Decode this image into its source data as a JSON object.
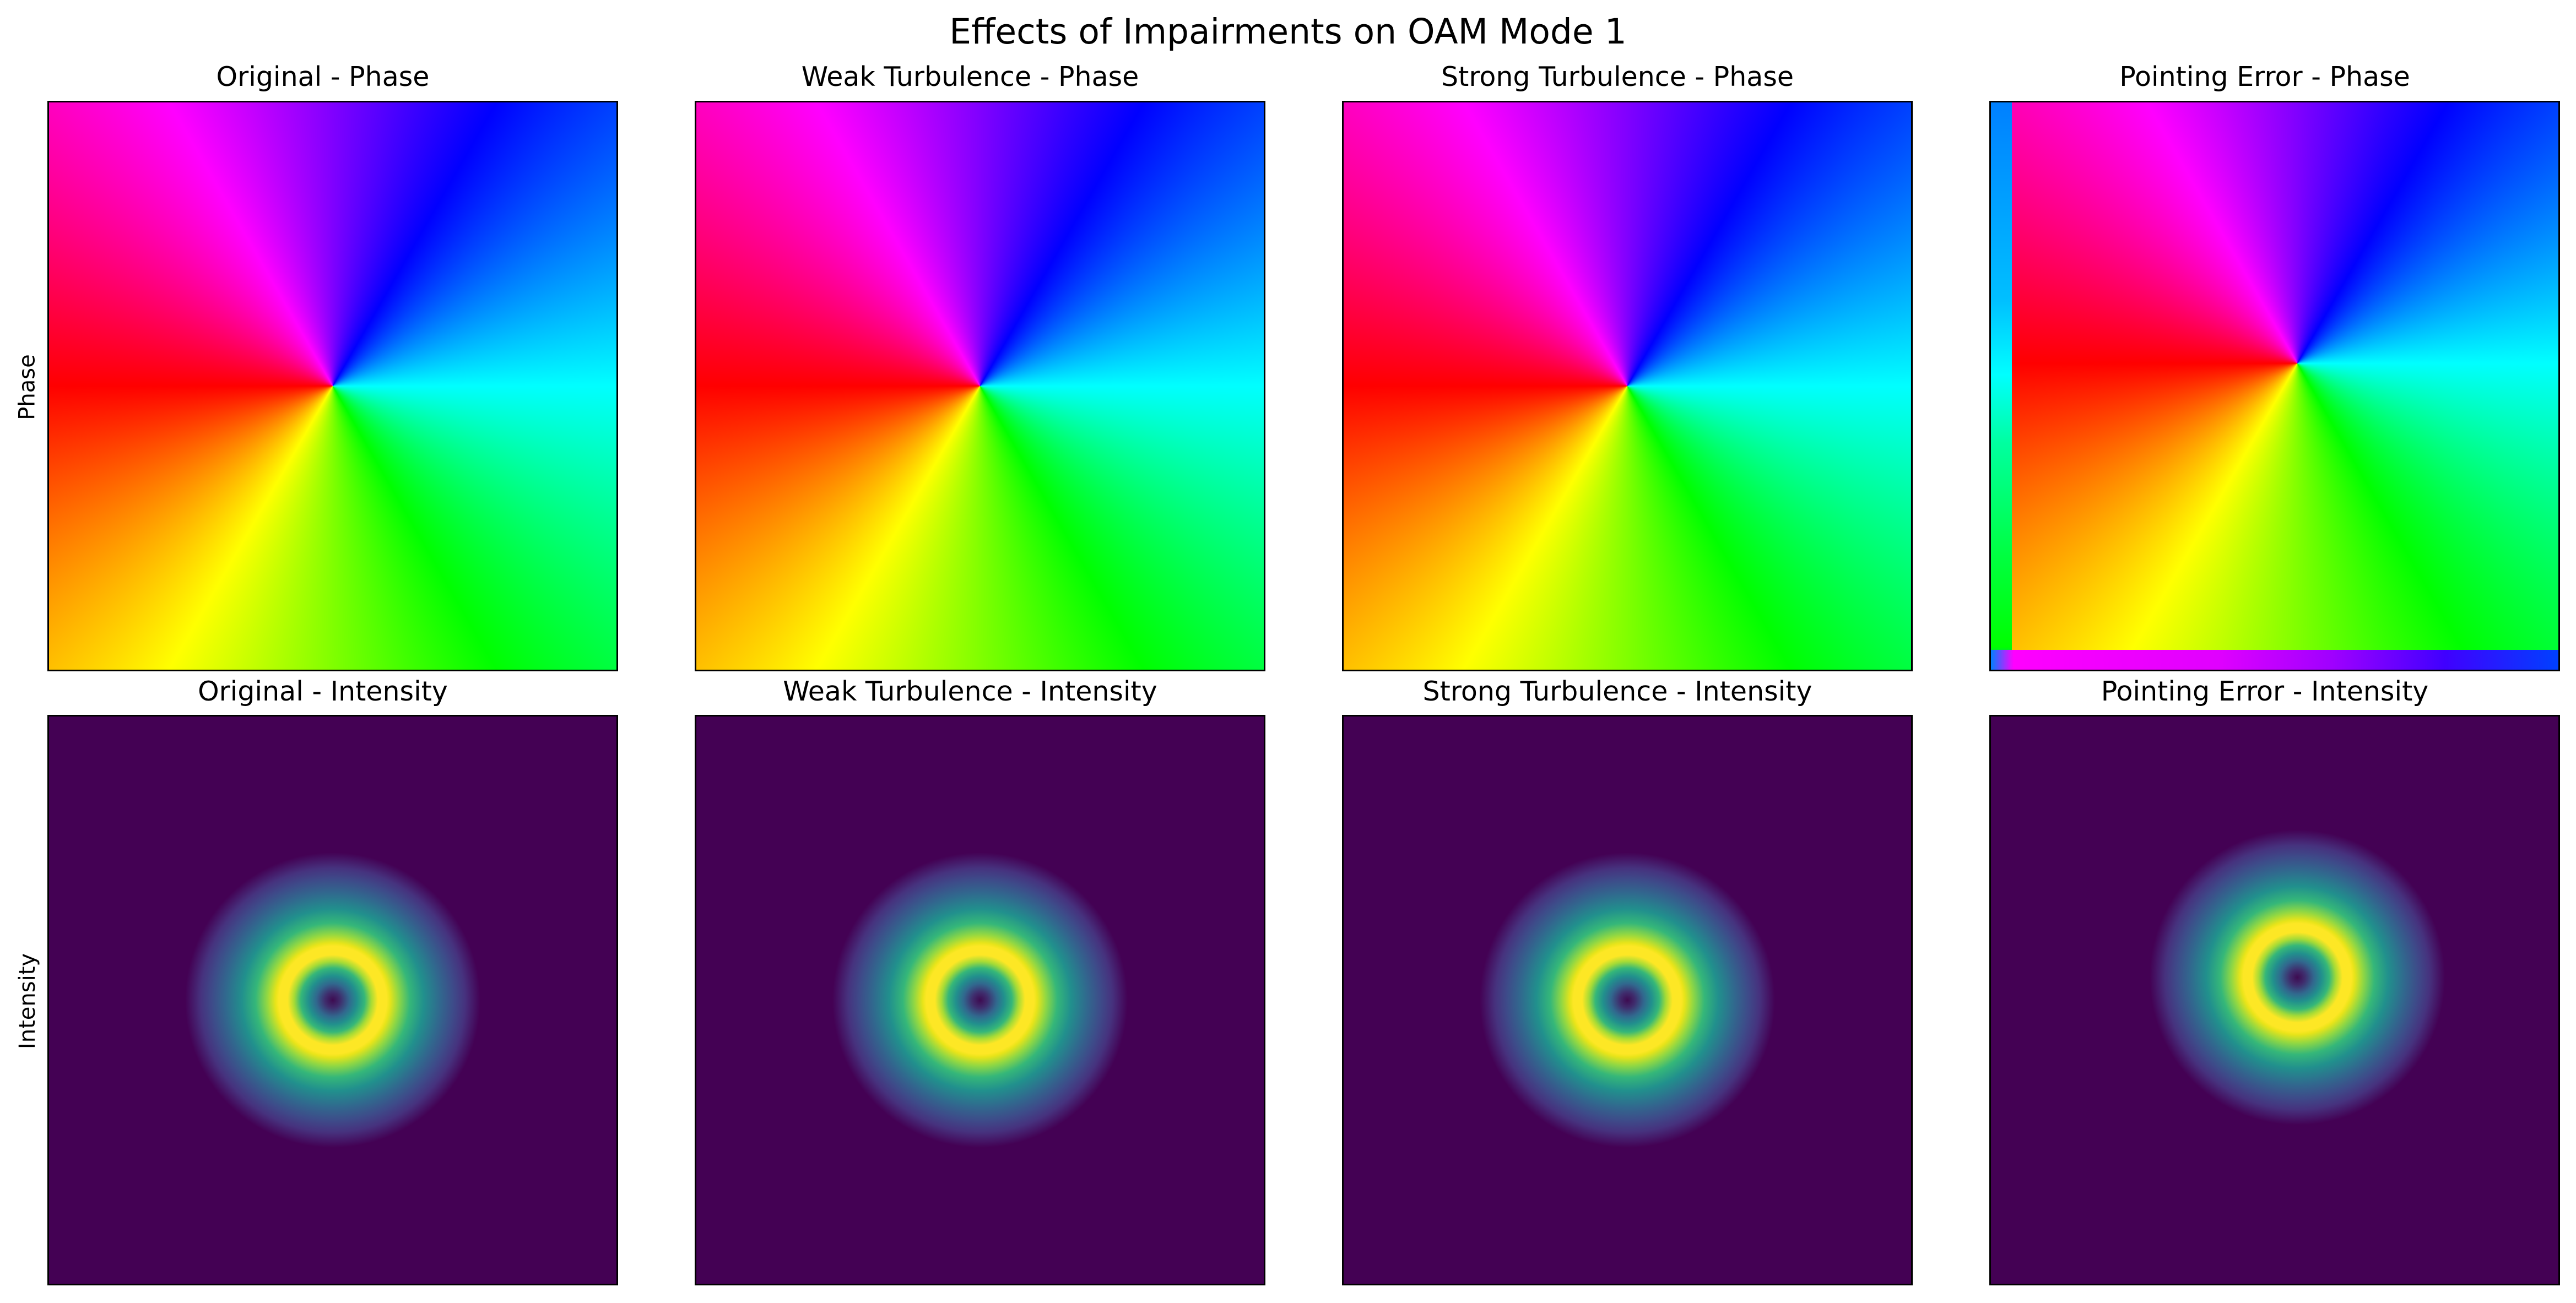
{
  "chart_data": {
    "type": "heatmap",
    "title": "Effects of Impairments on OAM Mode 1",
    "row_labels": [
      "Phase",
      "Intensity"
    ],
    "colormaps": {
      "phase": "hsv",
      "intensity": "viridis"
    },
    "panels": [
      {
        "title": "Original - Phase",
        "row": "Phase",
        "center": [
          0.5,
          0.5
        ]
      },
      {
        "title": "Weak Turbulence - Phase",
        "row": "Phase",
        "center": [
          0.5,
          0.5
        ]
      },
      {
        "title": "Strong Turbulence - Phase",
        "row": "Phase",
        "center": [
          0.5,
          0.5
        ]
      },
      {
        "title": "Pointing Error - Phase",
        "row": "Phase",
        "center": [
          0.55,
          0.46
        ]
      },
      {
        "title": "Original - Intensity",
        "row": "Intensity",
        "center": [
          0.5,
          0.5
        ]
      },
      {
        "title": "Weak Turbulence - Intensity",
        "row": "Intensity",
        "center": [
          0.5,
          0.5
        ]
      },
      {
        "title": "Strong Turbulence - Intensity",
        "row": "Intensity",
        "center": [
          0.5,
          0.5
        ]
      },
      {
        "title": "Pointing Error - Intensity",
        "row": "Intensity",
        "center": [
          0.55,
          0.46
        ]
      }
    ]
  }
}
